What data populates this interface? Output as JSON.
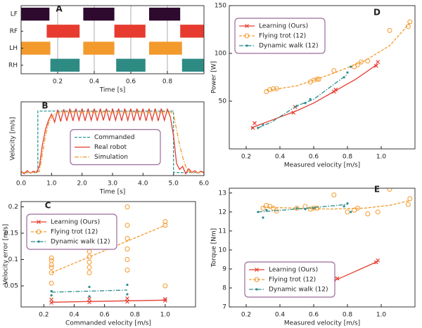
{
  "chart_data": [
    {
      "type": "gantt",
      "letter": "A",
      "xlabel": "Time [s]",
      "xlim": [
        0,
        1
      ],
      "xticks": [
        0.2,
        0.4,
        0.6,
        0.8
      ],
      "grid": true,
      "categories": [
        "LF",
        "RF",
        "LH",
        "RH"
      ],
      "colors": [
        "#2d0a2e",
        "#e63b2e",
        "#f39a2d",
        "#2e8b84"
      ],
      "intervals": [
        [
          [
            0,
            0.155
          ],
          [
            0.34,
            0.51
          ],
          [
            0.7,
            0.87
          ]
        ],
        [
          [
            0.14,
            0.32
          ],
          [
            0.51,
            0.68
          ],
          [
            0.87,
            1.0
          ]
        ],
        [
          [
            0,
            0.16
          ],
          [
            0.34,
            0.51
          ],
          [
            0.7,
            0.88
          ]
        ],
        [
          [
            0.16,
            0.32
          ],
          [
            0.52,
            0.68
          ],
          [
            0.88,
            1.0
          ]
        ]
      ]
    },
    {
      "type": "line",
      "letter": "B",
      "xlabel": "Time [s]",
      "ylabel": "Velocity [m/s]",
      "xlim": [
        0,
        6
      ],
      "ylim": [
        -0.05,
        1.15
      ],
      "xticks": [
        {
          "value": 0,
          "label": "0.0"
        },
        {
          "value": 1,
          "label": "1.0"
        },
        {
          "value": 2,
          "label": "2.0"
        },
        {
          "value": 3,
          "label": "3.0"
        },
        {
          "value": 4,
          "label": "4.0"
        },
        {
          "value": 5,
          "label": "5.0"
        },
        {
          "value": 6,
          "label": "6.0"
        }
      ],
      "legend": "center",
      "series": [
        {
          "name": "Commanded",
          "color": "#2b9a9a",
          "linestyle": "dashed",
          "x": [
            0,
            0.55,
            0.55,
            5.0,
            5.0,
            6.0
          ],
          "values": [
            0,
            0,
            1,
            1,
            0,
            0
          ]
        },
        {
          "name": "Real robot",
          "color": "#e63b2e",
          "linestyle": "solid",
          "x": [
            0,
            0.1,
            0.2,
            0.3,
            0.4,
            0.5,
            0.6,
            0.7,
            0.8,
            0.9,
            1.0,
            1.1,
            1.2,
            1.3,
            1.4,
            1.5,
            1.6,
            1.7,
            1.8,
            1.9,
            2.0,
            2.1,
            2.2,
            2.3,
            2.4,
            2.5,
            2.6,
            2.7,
            2.8,
            2.9,
            3.0,
            3.1,
            3.2,
            3.3,
            3.4,
            3.5,
            3.6,
            3.7,
            3.8,
            3.9,
            4.0,
            4.1,
            4.2,
            4.3,
            4.4,
            4.5,
            4.6,
            4.7,
            4.8,
            4.9,
            5.0,
            5.1,
            5.2,
            5.3,
            5.4,
            5.5,
            5.6,
            5.7,
            5.8,
            5.9,
            6.0
          ],
          "values": [
            0.02,
            -0.02,
            0.03,
            -0.01,
            0.02,
            0.0,
            0.1,
            0.45,
            0.7,
            0.85,
            0.95,
            0.82,
            1.02,
            0.83,
            1.03,
            0.84,
            1.04,
            0.84,
            1.04,
            0.85,
            1.04,
            0.84,
            1.04,
            0.85,
            1.04,
            0.84,
            1.04,
            0.85,
            1.04,
            0.84,
            1.04,
            0.85,
            1.04,
            0.84,
            1.04,
            0.85,
            1.04,
            0.84,
            1.04,
            0.85,
            1.04,
            0.84,
            1.04,
            0.85,
            1.04,
            0.84,
            1.04,
            0.85,
            1.03,
            0.9,
            0.6,
            0.15,
            0.05,
            0.1,
            -0.02,
            0.06,
            0.0,
            0.03,
            -0.01,
            0.02,
            0.0
          ]
        },
        {
          "name": "Simulation",
          "color": "#f39a2d",
          "linestyle": "dashdot",
          "x": [
            0,
            0.1,
            0.2,
            0.3,
            0.4,
            0.5,
            0.6,
            0.7,
            0.8,
            0.9,
            1.0,
            1.1,
            1.2,
            1.3,
            1.4,
            1.5,
            1.6,
            1.7,
            1.8,
            1.9,
            2.0,
            2.1,
            2.2,
            2.3,
            2.4,
            2.5,
            2.6,
            2.7,
            2.8,
            2.9,
            3.0,
            3.1,
            3.2,
            3.3,
            3.4,
            3.5,
            3.6,
            3.7,
            3.8,
            3.9,
            4.0,
            4.1,
            4.2,
            4.3,
            4.4,
            4.5,
            4.6,
            4.7,
            4.8,
            4.9,
            5.0,
            5.1,
            5.2,
            5.3,
            5.4,
            5.5,
            5.6,
            5.7,
            5.8,
            5.9,
            6.0
          ],
          "values": [
            0,
            0,
            0,
            0,
            0,
            0,
            0.02,
            0.3,
            0.6,
            0.8,
            0.9,
            0.95,
            0.97,
            0.99,
            0.97,
            0.99,
            0.97,
            0.99,
            0.97,
            0.99,
            0.97,
            0.99,
            0.97,
            0.99,
            0.97,
            0.99,
            0.97,
            0.99,
            0.97,
            0.99,
            0.97,
            0.99,
            0.97,
            0.99,
            0.97,
            0.99,
            0.97,
            0.99,
            0.97,
            0.99,
            0.97,
            0.99,
            0.97,
            0.99,
            0.97,
            0.99,
            0.97,
            0.99,
            0.97,
            0.99,
            0.95,
            0.7,
            0.45,
            0.25,
            0.1,
            0.02,
            0,
            0,
            0,
            0,
            0
          ]
        }
      ]
    },
    {
      "type": "scatter",
      "letter": "C",
      "xlabel": "Commanded velocity [m/s]",
      "ylabel": "Velocity error [m/s]",
      "xlim": [
        0.05,
        1.2
      ],
      "ylim": [
        0.01,
        0.21
      ],
      "xticks": [
        0.2,
        0.4,
        0.6,
        0.8,
        {
          "value": 1,
          "label": "1.0"
        }
      ],
      "yticks": [
        0.05,
        0.1,
        0.15,
        0.2
      ],
      "legend": "upper left",
      "series": [
        {
          "name": "Learning (Ours)",
          "color": "#e63b2e",
          "marker": "x",
          "linestyle": "solid",
          "x": [
            0.25,
            0.25,
            0.5,
            0.5,
            0.75,
            0.75,
            1.0,
            1.0
          ],
          "values": [
            0.018,
            0.024,
            0.019,
            0.025,
            0.02,
            0.026,
            0.022,
            0.025
          ],
          "fit_x": [
            0.25,
            1.0
          ],
          "fit_values": [
            0.019,
            0.023
          ]
        },
        {
          "name": "Flying trot (12)",
          "color": "#f39a2d",
          "marker": "o",
          "linestyle": "dashed",
          "x": [
            0.25,
            0.25,
            0.25,
            0.25,
            0.25,
            0.25,
            0.5,
            0.5,
            0.5,
            0.5,
            0.5,
            0.75,
            0.75,
            0.75,
            0.75,
            0.75,
            0.75,
            1.0,
            1.0,
            1.0
          ],
          "values": [
            0.055,
            0.075,
            0.085,
            0.09,
            0.098,
            0.103,
            0.075,
            0.085,
            0.095,
            0.105,
            0.115,
            0.08,
            0.1,
            0.12,
            0.14,
            0.165,
            0.2,
            0.05,
            0.165,
            0.172
          ],
          "fit_x": [
            0.25,
            1.0
          ],
          "fit_values": [
            0.075,
            0.165
          ]
        },
        {
          "name": "Dynamic walk (12)",
          "color": "#2b8c8c",
          "marker": ".",
          "linestyle": "dashdot",
          "x": [
            0.25,
            0.25,
            0.5,
            0.5,
            0.75,
            0.75
          ],
          "values": [
            0.04,
            0.032,
            0.048,
            0.03,
            0.052,
            0.034
          ],
          "fit_x": [
            0.25,
            0.75
          ],
          "fit_values": [
            0.038,
            0.042
          ]
        }
      ]
    },
    {
      "type": "scatter",
      "letter": "D",
      "xlabel": "Measured velocity [m/s]",
      "ylabel": "Power [W]",
      "xlim": [
        0.1,
        1.2
      ],
      "ylim": [
        0,
        150
      ],
      "xticks": [
        0.2,
        0.4,
        0.6,
        0.8,
        {
          "value": 1,
          "label": "1.0"
        }
      ],
      "yticks": [
        50,
        100,
        150
      ],
      "legend": "upper left",
      "series": [
        {
          "name": "Learning (Ours)",
          "color": "#e63b2e",
          "marker": "x",
          "linestyle": "solid",
          "x": [
            0.24,
            0.25,
            0.48,
            0.49,
            0.72,
            0.73,
            0.97,
            0.98
          ],
          "values": [
            22,
            27,
            38,
            44,
            60,
            62,
            87,
            91
          ],
          "fit_x": [
            0.23,
            0.35,
            0.5,
            0.6,
            0.73,
            0.85,
            0.98
          ],
          "fit_values": [
            22,
            30,
            40,
            48,
            61,
            73,
            89
          ]
        },
        {
          "name": "Flying trot (12)",
          "color": "#f39a2d",
          "marker": "o",
          "linestyle": "dashed",
          "x": [
            0.32,
            0.34,
            0.36,
            0.38,
            0.58,
            0.6,
            0.62,
            0.63,
            0.72,
            0.84,
            0.86,
            0.88,
            0.92,
            1.05,
            1.16,
            1.17
          ],
          "values": [
            60,
            62,
            63,
            63,
            70,
            72,
            73,
            73,
            82,
            86,
            88,
            91,
            92,
            124,
            128,
            133
          ],
          "fit_x": [
            0.32,
            0.5,
            0.7,
            0.9,
            1.05,
            1.17
          ],
          "fit_values": [
            61,
            66,
            78,
            92,
            108,
            132
          ]
        },
        {
          "name": "Dynamic walk (12)",
          "color": "#2b8c8c",
          "marker": ".",
          "linestyle": "dashdot",
          "x": [
            0.27,
            0.3,
            0.5,
            0.55,
            0.58,
            0.78,
            0.8,
            0.82
          ],
          "values": [
            22,
            25,
            45,
            48,
            52,
            75,
            80,
            86
          ],
          "fit_x": [
            0.27,
            0.35,
            0.5,
            0.6,
            0.8
          ],
          "fit_values": [
            22,
            28,
            45,
            52,
            78
          ]
        }
      ]
    },
    {
      "type": "scatter",
      "letter": "E",
      "xlabel": "Measured velocity [m/s]",
      "ylabel": "Torque [Nm]",
      "xlim": [
        0.1,
        1.2
      ],
      "ylim": [
        7,
        13.25
      ],
      "xticks": [
        0.2,
        0.4,
        0.6,
        0.8,
        {
          "value": 1,
          "label": "1.0"
        }
      ],
      "yticks": [
        7,
        8,
        9,
        10,
        11,
        12,
        13
      ],
      "legend": "lower left",
      "series": [
        {
          "name": "Learning (Ours)",
          "color": "#e63b2e",
          "marker": "x",
          "linestyle": "solid",
          "x": [
            0.24,
            0.48,
            0.49,
            0.72,
            0.74,
            0.97,
            0.98
          ],
          "values": [
            7.85,
            8.05,
            8.15,
            8.45,
            8.5,
            9.35,
            9.45
          ],
          "fit_x": [
            0.23,
            0.5,
            0.74,
            0.98
          ],
          "fit_values": [
            7.85,
            8.1,
            8.45,
            9.4
          ]
        },
        {
          "name": "Flying trot (12)",
          "color": "#f39a2d",
          "marker": "o",
          "linestyle": "dashed",
          "x": [
            0.3,
            0.32,
            0.34,
            0.36,
            0.38,
            0.5,
            0.55,
            0.58,
            0.6,
            0.62,
            0.72,
            0.8,
            0.84,
            0.86,
            0.92,
            0.98,
            1.05,
            1.16,
            1.17
          ],
          "values": [
            12.2,
            12.35,
            12.3,
            12.2,
            12.05,
            12.2,
            12.3,
            12.15,
            12.2,
            12.2,
            12.9,
            12.0,
            12.1,
            12.2,
            11.9,
            12.0,
            13.2,
            12.4,
            12.7
          ],
          "fit_x": [
            0.3,
            0.5,
            0.7,
            0.9,
            1.05,
            1.17
          ],
          "fit_values": [
            12.25,
            12.2,
            12.15,
            12.2,
            12.35,
            12.6
          ]
        },
        {
          "name": "Dynamic walk (12)",
          "color": "#2b8c8c",
          "marker": ".",
          "linestyle": "dashdot",
          "x": [
            0.27,
            0.3,
            0.32,
            0.5,
            0.55,
            0.6,
            0.78,
            0.8,
            0.82
          ],
          "values": [
            12.0,
            11.7,
            12.1,
            12.2,
            12.15,
            12.2,
            12.3,
            12.45,
            12.0
          ],
          "fit_x": [
            0.27,
            0.5,
            0.8
          ],
          "fit_values": [
            12.0,
            12.15,
            12.4
          ]
        }
      ]
    }
  ]
}
